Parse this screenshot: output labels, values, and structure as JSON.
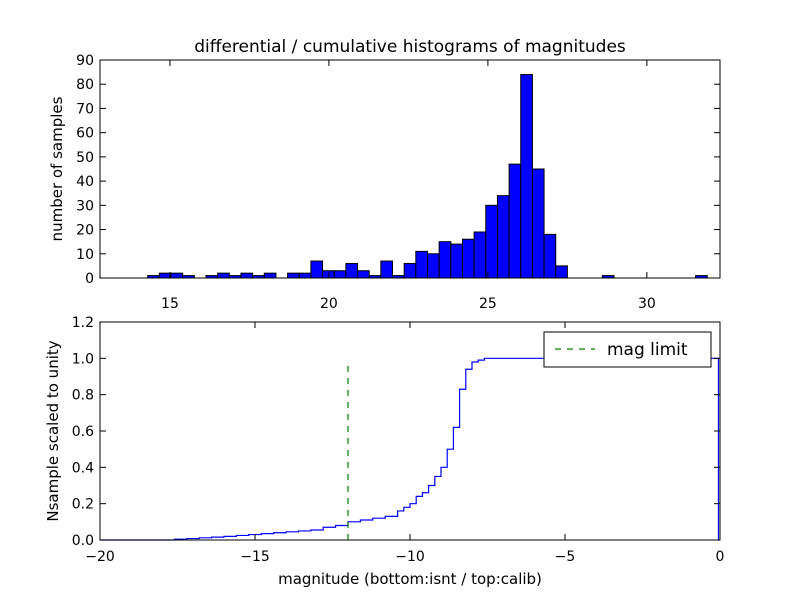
{
  "chart_data": [
    {
      "type": "bar",
      "title": "differential / cumulative histograms of magnitudes",
      "xlabel": "",
      "ylabel": "number of samples",
      "xlim": [
        12.8,
        32.3
      ],
      "ylim": [
        0,
        90
      ],
      "xticks": [
        15,
        20,
        25,
        30
      ],
      "yticks": [
        0,
        10,
        20,
        30,
        40,
        50,
        60,
        70,
        80,
        90
      ],
      "bar_color": "#0000ff",
      "bin_width": 0.367,
      "bins": [
        {
          "x": 14.3,
          "count": 1
        },
        {
          "x": 14.667,
          "count": 2
        },
        {
          "x": 15.033,
          "count": 2
        },
        {
          "x": 15.4,
          "count": 1
        },
        {
          "x": 16.133,
          "count": 1
        },
        {
          "x": 16.5,
          "count": 2
        },
        {
          "x": 16.867,
          "count": 1
        },
        {
          "x": 17.233,
          "count": 2
        },
        {
          "x": 17.6,
          "count": 1
        },
        {
          "x": 17.967,
          "count": 2
        },
        {
          "x": 18.333,
          "count": 0
        },
        {
          "x": 18.7,
          "count": 2
        },
        {
          "x": 19.067,
          "count": 2
        },
        {
          "x": 19.433,
          "count": 7
        },
        {
          "x": 19.8,
          "count": 3
        },
        {
          "x": 20.167,
          "count": 3
        },
        {
          "x": 20.533,
          "count": 6
        },
        {
          "x": 20.9,
          "count": 3
        },
        {
          "x": 21.267,
          "count": 1
        },
        {
          "x": 21.633,
          "count": 7
        },
        {
          "x": 22.0,
          "count": 1
        },
        {
          "x": 22.367,
          "count": 6
        },
        {
          "x": 22.733,
          "count": 11
        },
        {
          "x": 23.1,
          "count": 10
        },
        {
          "x": 23.467,
          "count": 15
        },
        {
          "x": 23.833,
          "count": 14
        },
        {
          "x": 24.2,
          "count": 16
        },
        {
          "x": 24.567,
          "count": 19
        },
        {
          "x": 24.933,
          "count": 30
        },
        {
          "x": 25.3,
          "count": 34
        },
        {
          "x": 25.667,
          "count": 47
        },
        {
          "x": 26.033,
          "count": 84
        },
        {
          "x": 26.4,
          "count": 45
        },
        {
          "x": 26.767,
          "count": 18
        },
        {
          "x": 27.133,
          "count": 5
        },
        {
          "x": 28.6,
          "count": 1
        },
        {
          "x": 31.533,
          "count": 1
        }
      ]
    },
    {
      "type": "line",
      "xlabel": "magnitude (bottom:isnt / top:calib)",
      "ylabel": "Nsample scaled to unity",
      "xlim": [
        -20,
        0
      ],
      "ylim": [
        0.0,
        1.2
      ],
      "xticks": [
        -20,
        -15,
        -10,
        -5,
        0
      ],
      "xtick_labels": [
        "−20",
        "−15",
        "−10",
        "−5",
        "0"
      ],
      "yticks": [
        0.0,
        0.2,
        0.4,
        0.6,
        0.8,
        1.0,
        1.2
      ],
      "ytick_labels": [
        "0.0",
        "0.2",
        "0.4",
        "0.6",
        "0.8",
        "1.0",
        "1.2"
      ],
      "series": [
        {
          "color": "#0000ff",
          "style": "step",
          "x": [
            -20,
            -17.6,
            -17.2,
            -16.8,
            -16.4,
            -16.0,
            -15.6,
            -15.2,
            -14.8,
            -14.4,
            -14.0,
            -13.6,
            -13.2,
            -12.8,
            -12.4,
            -12.0,
            -11.6,
            -11.2,
            -10.8,
            -10.4,
            -10.2,
            -10.0,
            -9.8,
            -9.6,
            -9.4,
            -9.2,
            -9.0,
            -8.8,
            -8.6,
            -8.4,
            -8.2,
            -8.0,
            -7.8,
            -7.6,
            -7.0,
            -6.6,
            -5.0,
            -0.05
          ],
          "y": [
            0.0,
            0.004,
            0.008,
            0.012,
            0.016,
            0.02,
            0.025,
            0.03,
            0.035,
            0.04,
            0.045,
            0.05,
            0.055,
            0.07,
            0.08,
            0.1,
            0.11,
            0.12,
            0.13,
            0.16,
            0.18,
            0.2,
            0.24,
            0.26,
            0.3,
            0.35,
            0.4,
            0.5,
            0.62,
            0.83,
            0.94,
            0.98,
            0.99,
            1.0,
            1.0,
            1.0,
            1.0,
            0.0
          ]
        },
        {
          "name": "mag limit",
          "color": "#008000",
          "style": "dashed",
          "x": [
            -12.0,
            -12.0
          ],
          "y": [
            0.0,
            0.97
          ]
        }
      ],
      "legend": {
        "placement": "top-right",
        "entries": [
          "mag limit"
        ]
      }
    }
  ]
}
